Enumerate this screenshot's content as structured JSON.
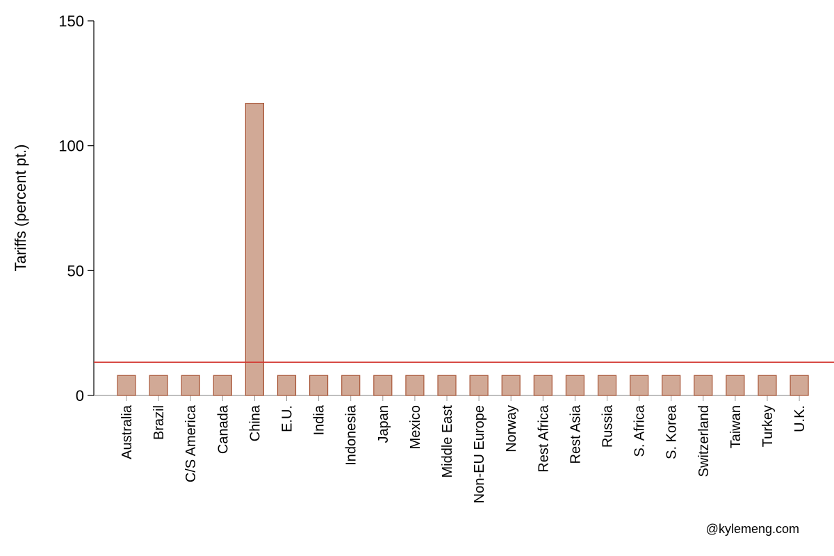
{
  "chart_data": {
    "type": "bar",
    "title": "",
    "xlabel": "",
    "ylabel": "Tariffs (percent pt.)",
    "ylim": [
      0,
      150
    ],
    "yticks": [
      0,
      50,
      100,
      150
    ],
    "categories": [
      "Australia",
      "Brazil",
      "C/S America",
      "Canada",
      "China",
      "E.U.",
      "India",
      "Indonesia",
      "Japan",
      "Mexico",
      "Middle East",
      "Non-EU Europe",
      "Norway",
      "Rest Africa",
      "Rest Asia",
      "Russia",
      "S. Africa",
      "S. Korea",
      "Switzerland",
      "Taiwan",
      "Turkey",
      "U.K."
    ],
    "values": [
      8,
      8,
      8,
      8,
      117,
      8,
      8,
      8,
      8,
      8,
      8,
      8,
      8,
      8,
      8,
      8,
      8,
      8,
      8,
      8,
      8,
      8
    ],
    "reference_line": {
      "value": 13.3
    },
    "grid": false,
    "colors": {
      "bar_fill": "#d1a996",
      "bar_stroke": "#a9583a",
      "reference_line": "#d33a33",
      "axis": "#000000"
    }
  },
  "credit": "@kylemeng.com"
}
